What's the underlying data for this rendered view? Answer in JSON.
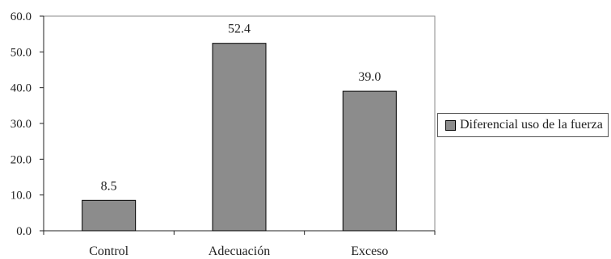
{
  "chart_data": {
    "type": "bar",
    "categories": [
      "Control",
      "Adecuación",
      "Exceso"
    ],
    "series": [
      {
        "name": "Diferencial uso de la fuerza",
        "values": [
          8.5,
          52.4,
          39.0
        ],
        "color": "#8c8c8c"
      }
    ],
    "data_labels": [
      "8.5",
      "52.4",
      "39.0"
    ],
    "y_ticks": [
      "0.0",
      "10.0",
      "20.0",
      "30.0",
      "40.0",
      "50.0",
      "60.0"
    ],
    "ylim": [
      0,
      60
    ],
    "ystep": 10,
    "title": "",
    "xlabel": "",
    "ylabel": "",
    "grid": false,
    "legend_position": "right"
  },
  "legend": {
    "label": "Diferencial uso de la fuerza",
    "color": "#8c8c8c"
  }
}
